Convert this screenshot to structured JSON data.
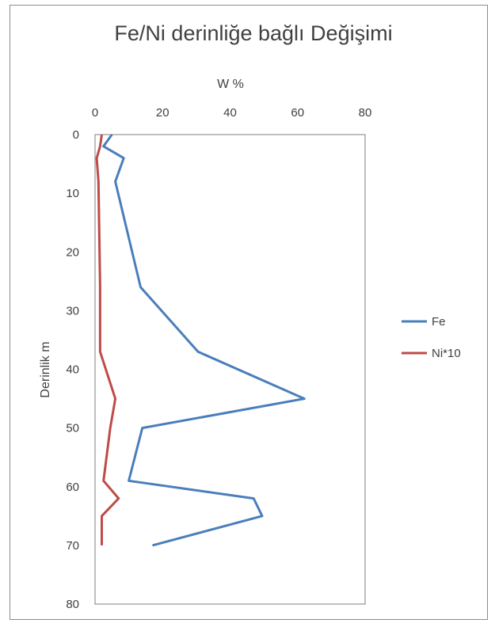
{
  "chart_data": {
    "type": "line",
    "title": "Fe/Ni derinliğe bağlı Değişimi",
    "xlabel": "W %",
    "ylabel": "Derinlik m",
    "xlim": [
      0,
      80
    ],
    "ylim": [
      0,
      80
    ],
    "x_axis_position": "top",
    "y_axis_inverted": true,
    "xticks": [
      "0",
      "20",
      "40",
      "60",
      "80"
    ],
    "yticks": [
      "0",
      "10",
      "20",
      "30",
      "40",
      "50",
      "60",
      "70",
      "80"
    ],
    "grid": false,
    "legend_position": "right",
    "series": [
      {
        "name": "Fe",
        "color": "#4a7ebb",
        "points": [
          [
            5,
            0
          ],
          [
            2.5,
            2
          ],
          [
            8.5,
            4
          ],
          [
            6,
            8
          ],
          [
            13.5,
            26
          ],
          [
            30.5,
            37
          ],
          [
            62,
            45
          ],
          [
            14,
            50
          ],
          [
            10,
            59
          ],
          [
            47,
            62
          ],
          [
            49.5,
            65
          ],
          [
            17,
            70
          ]
        ]
      },
      {
        "name": "Ni*10",
        "color": "#be4b48",
        "points": [
          [
            2,
            0
          ],
          [
            1.5,
            2
          ],
          [
            0.5,
            4
          ],
          [
            1,
            8
          ],
          [
            1.5,
            26
          ],
          [
            1.5,
            37
          ],
          [
            6,
            45
          ],
          [
            4.5,
            50
          ],
          [
            2.5,
            59
          ],
          [
            7,
            62
          ],
          [
            2,
            65
          ],
          [
            2,
            70
          ]
        ]
      }
    ]
  }
}
